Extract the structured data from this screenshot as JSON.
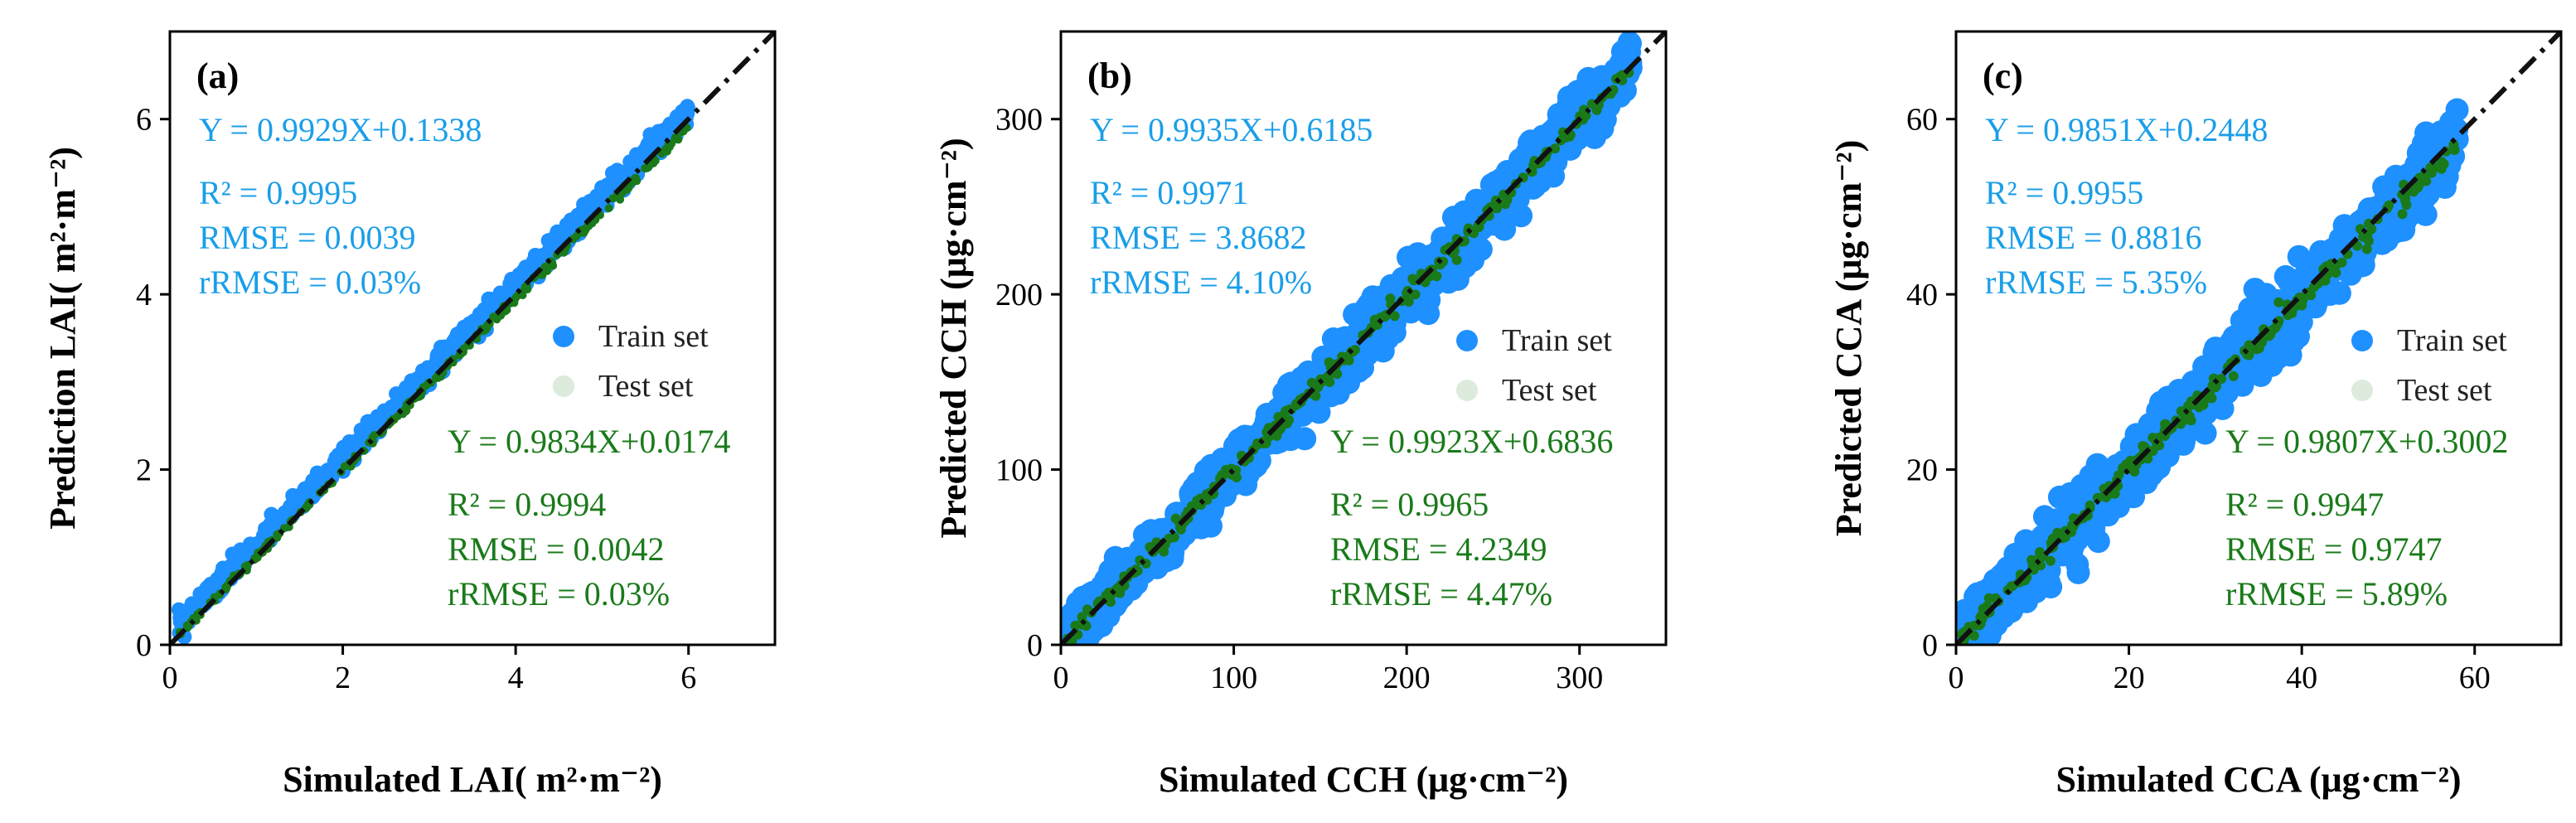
{
  "chart_data": [
    {
      "type": "scatter",
      "panel_label": "(a)",
      "xlabel": "Simulated LAI( m²·m⁻²)",
      "ylabel": "Prediction LAI( m²·m⁻²)",
      "xlim": [
        0,
        7
      ],
      "ylim": [
        0,
        7
      ],
      "xticks": [
        0,
        2,
        4,
        6
      ],
      "yticks": [
        0,
        2,
        4,
        6
      ],
      "data_range": [
        0.1,
        6.0
      ],
      "spread": 0.12,
      "legend": [
        "Train set",
        "Test set"
      ],
      "train_colors": {
        "line_color": "#1a9ee8"
      },
      "series": [
        {
          "name": "Train set",
          "color": "#1e90ff",
          "fit": {
            "slope": 0.9929,
            "intercept": 0.1338
          },
          "stats": [
            "Y = 0.9929X+0.1338",
            "R² = 0.9995",
            "RMSE = 0.0039",
            "rRMSE = 0.03%"
          ]
        },
        {
          "name": "Test set",
          "color": "#1a7a1a",
          "fit": {
            "slope": 0.9834,
            "intercept": 0.0174
          },
          "stats": [
            "Y = 0.9834X+0.0174",
            "R² = 0.9994",
            "RMSE = 0.0042",
            "rRMSE = 0.03%"
          ]
        }
      ]
    },
    {
      "type": "scatter",
      "panel_label": "(b)",
      "xlabel": "Simulated CCH (μg·cm⁻²)",
      "ylabel": "Predicted CCH (μg·cm⁻²)",
      "xlim": [
        0,
        350
      ],
      "ylim": [
        0,
        350
      ],
      "xticks": [
        0,
        100,
        200,
        300
      ],
      "yticks": [
        0,
        100,
        200,
        300
      ],
      "data_range": [
        3,
        330
      ],
      "spread": 14,
      "legend": [
        "Train set",
        "Test set"
      ],
      "series": [
        {
          "name": "Train set",
          "color": "#1e90ff",
          "fit": {
            "slope": 0.9935,
            "intercept": 0.6185
          },
          "stats": [
            "Y = 0.9935X+0.6185",
            "R² = 0.9971",
            "RMSE = 3.8682",
            "rRMSE = 4.10%"
          ]
        },
        {
          "name": "Test set",
          "color": "#1a7a1a",
          "fit": {
            "slope": 0.9923,
            "intercept": 0.6836
          },
          "stats": [
            "Y = 0.9923X+0.6836",
            "R² = 0.9965",
            "RMSE = 4.2349",
            "rRMSE = 4.47%"
          ]
        }
      ]
    },
    {
      "type": "scatter",
      "panel_label": "(c)",
      "xlabel": "Simulated CCA (μg·cm⁻²)",
      "ylabel": "Predicted CCA (μg·cm⁻²)",
      "xlim": [
        0,
        70
      ],
      "ylim": [
        0,
        70
      ],
      "xticks": [
        0,
        20,
        40,
        60
      ],
      "yticks": [
        0,
        20,
        40,
        60
      ],
      "data_range": [
        0.5,
        58
      ],
      "spread": 3.2,
      "legend": [
        "Train set",
        "Test set"
      ],
      "series": [
        {
          "name": "Train set",
          "color": "#1e90ff",
          "fit": {
            "slope": 0.9851,
            "intercept": 0.2448
          },
          "stats": [
            "Y = 0.9851X+0.2448",
            "R² = 0.9955",
            "RMSE = 0.8816",
            "rRMSE = 5.35%"
          ]
        },
        {
          "name": "Test set",
          "color": "#1a7a1a",
          "fit": {
            "slope": 0.9807,
            "intercept": 0.3002
          },
          "stats": [
            "Y = 0.9807X+0.3002",
            "R² = 0.9947",
            "RMSE = 0.9747",
            "rRMSE = 5.89%"
          ]
        }
      ]
    }
  ]
}
